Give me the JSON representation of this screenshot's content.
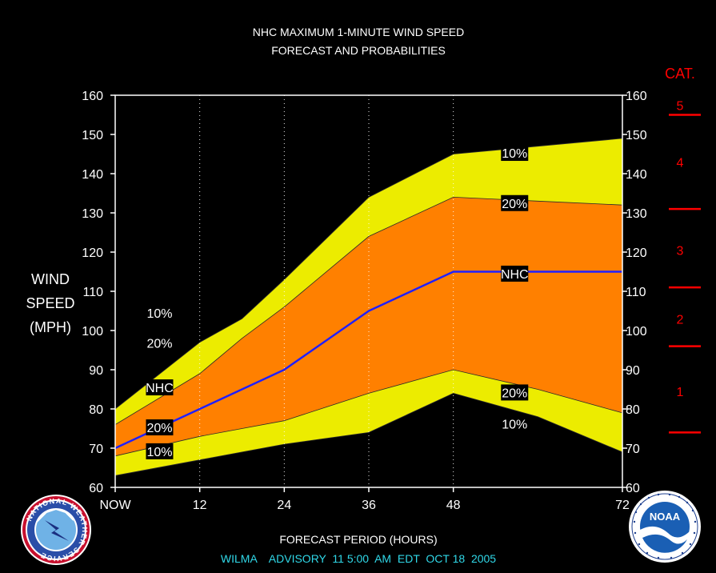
{
  "chart_data": {
    "type": "area",
    "title_lines": [
      "NHC MAXIMUM 1-MINUTE WIND SPEED",
      "FORECAST AND PROBABILITIES"
    ],
    "ylabel_lines": [
      "WIND",
      "SPEED",
      "(MPH)"
    ],
    "xlabel": "FORECAST PERIOD (HOURS)",
    "subtitle": "WILMA    ADVISORY  11 5:00  AM  EDT  OCT 18  2005",
    "x": [
      0,
      12,
      24,
      36,
      48,
      72
    ],
    "x_tick_labels": [
      "NOW",
      "12",
      "24",
      "36",
      "48",
      "72"
    ],
    "xlim": [
      0,
      72
    ],
    "ylim": [
      60,
      160
    ],
    "y_ticks": [
      60,
      70,
      80,
      90,
      100,
      110,
      120,
      130,
      140,
      150,
      160
    ],
    "grid": "vertical dotted at forecast hours",
    "bands": {
      "upper_10": {
        "x": [
          0,
          12,
          18,
          24,
          36,
          48,
          60,
          72
        ],
        "values": [
          80,
          97,
          103,
          113,
          134,
          145,
          147,
          149
        ]
      },
      "upper_20": {
        "x": [
          0,
          12,
          18,
          24,
          36,
          48,
          60,
          72
        ],
        "values": [
          76,
          89,
          98,
          106,
          124,
          134,
          133,
          132
        ]
      },
      "lower_20": {
        "x": [
          0,
          12,
          18,
          24,
          36,
          48,
          60,
          72
        ],
        "values": [
          68,
          73,
          75,
          77,
          84,
          90,
          85,
          79
        ]
      },
      "lower_10": {
        "x": [
          0,
          12,
          18,
          24,
          36,
          48,
          60,
          72
        ],
        "values": [
          63,
          67,
          69,
          71,
          74,
          84,
          78,
          69
        ]
      }
    },
    "series": [
      {
        "name": "NHC",
        "x": [
          0,
          12,
          24,
          36,
          48,
          72
        ],
        "values": [
          70,
          80,
          90,
          105,
          115,
          115
        ]
      }
    ],
    "labels": [
      {
        "text": "10%",
        "x": 6.3,
        "y": 104.5
      },
      {
        "text": "20%",
        "x": 6.3,
        "y": 96.8
      },
      {
        "text": "NHC",
        "x": 6.3,
        "y": 85.5
      },
      {
        "text": "20%",
        "x": 6.3,
        "y": 75.3
      },
      {
        "text": "10%",
        "x": 6.3,
        "y": 69.2
      },
      {
        "text": "10%",
        "x": 56.7,
        "y": 145.3
      },
      {
        "text": "20%",
        "x": 56.7,
        "y": 132.5
      },
      {
        "text": "NHC",
        "x": 56.7,
        "y": 114.5
      },
      {
        "text": "20%",
        "x": 56.7,
        "y": 84.2
      },
      {
        "text": "10%",
        "x": 56.7,
        "y": 76.2
      }
    ],
    "category_scale": {
      "heading": "CAT.",
      "boundaries": [
        74,
        96,
        111,
        131,
        155
      ],
      "categories": [
        {
          "label": "1",
          "low": 74,
          "high": 95
        },
        {
          "label": "2",
          "low": 96,
          "high": 110
        },
        {
          "label": "3",
          "low": 111,
          "high": 130
        },
        {
          "label": "4",
          "low": 131,
          "high": 155
        },
        {
          "label": "5",
          "low": 155,
          "high": 160
        }
      ]
    },
    "colors": {
      "yellow_band": "#ecec00",
      "orange_band": "#ff8000",
      "nhc_line": "#2020ff",
      "category_red": "#ff0000",
      "subtitle_cyan": "#30d8e8",
      "axis": "#ffffff"
    }
  },
  "logos": {
    "nws": {
      "text": "NATIONAL WEATHER SERVICE"
    },
    "noaa": {
      "text": "NOAA"
    }
  }
}
